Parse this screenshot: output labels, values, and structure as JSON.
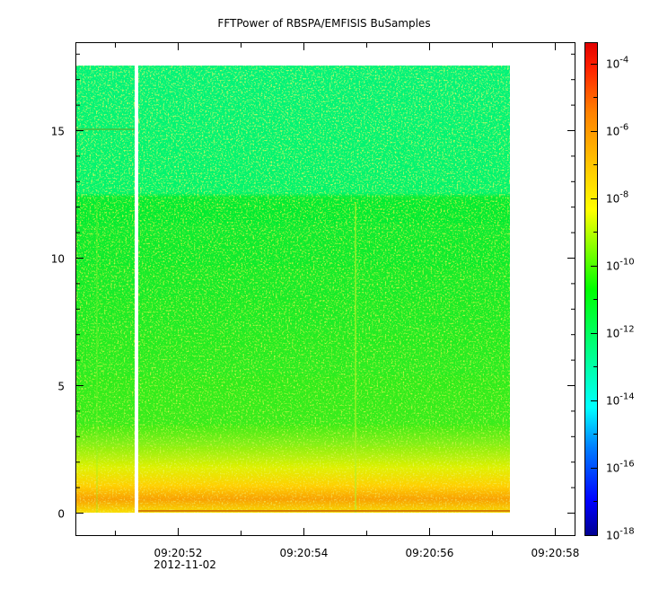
{
  "chart_data": {
    "type": "heatmap",
    "title": "FFTPower of RBSPA/EMFISIS  BuSamples",
    "xlabel": "",
    "ylabel": "",
    "y_ticks": [
      0,
      5,
      10,
      15
    ],
    "ylim": [
      -0.9,
      18.5
    ],
    "x_ticks": [
      "09:20:52",
      "09:20:54",
      "09:20:56",
      "09:20:58"
    ],
    "x_date_label": "2012-11-02",
    "colorbar": {
      "scale": "log",
      "range": [
        "1e-18",
        "1e-3.4"
      ],
      "tick_labels": [
        {
          "base": "10",
          "exp": "-4"
        },
        {
          "base": "10",
          "exp": "-6"
        },
        {
          "base": "10",
          "exp": "-8"
        },
        {
          "base": "10",
          "exp": "-10"
        },
        {
          "base": "10",
          "exp": "-12"
        },
        {
          "base": "10",
          "exp": "-14"
        },
        {
          "base": "10",
          "exp": "-16"
        },
        {
          "base": "10",
          "exp": "-18"
        }
      ],
      "colors": [
        "#00008f",
        "#0000ff",
        "#0080ff",
        "#00ffff",
        "#00ff80",
        "#00ff00",
        "#80ff00",
        "#ffff00",
        "#ff8000",
        "#ff0000",
        "#c80000"
      ]
    },
    "data_summary": {
      "frequency_max": 17.5,
      "power_band_above_12": "1e-12 to 1e-13",
      "power_band_2_to_12": "1e-10 to 1e-11",
      "power_band_below_2": "1e-8 to 1e-9",
      "data_gap_near": "09:20:51.4"
    }
  }
}
